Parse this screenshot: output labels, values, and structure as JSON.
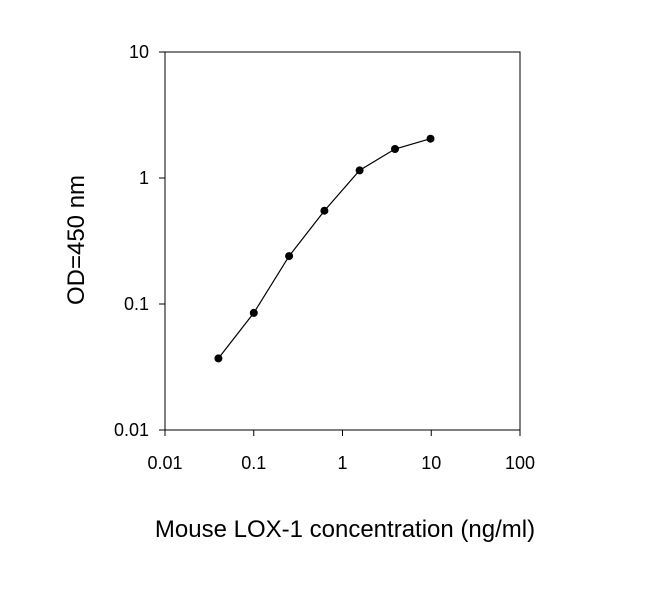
{
  "chart_data": {
    "type": "line",
    "title": "",
    "xlabel": "Mouse LOX-1 concentration (ng/ml)",
    "ylabel": "OD=450 nm",
    "x_scale": "log",
    "y_scale": "log",
    "xlim": [
      0.01,
      100
    ],
    "ylim": [
      0.01,
      10
    ],
    "x_ticks": [
      "0.01",
      "0.1",
      "1",
      "10",
      "100"
    ],
    "y_ticks": [
      "0.01",
      "0.1",
      "1",
      "10"
    ],
    "grid": false,
    "legend": "none",
    "series": [
      {
        "x": [
          0.04,
          0.1,
          0.25,
          0.625,
          1.56,
          3.9,
          9.8
        ],
        "y": [
          0.037,
          0.085,
          0.24,
          0.55,
          1.15,
          1.7,
          2.05
        ]
      }
    ],
    "colors": {
      "line": "#000000",
      "marker": "#000000"
    }
  }
}
